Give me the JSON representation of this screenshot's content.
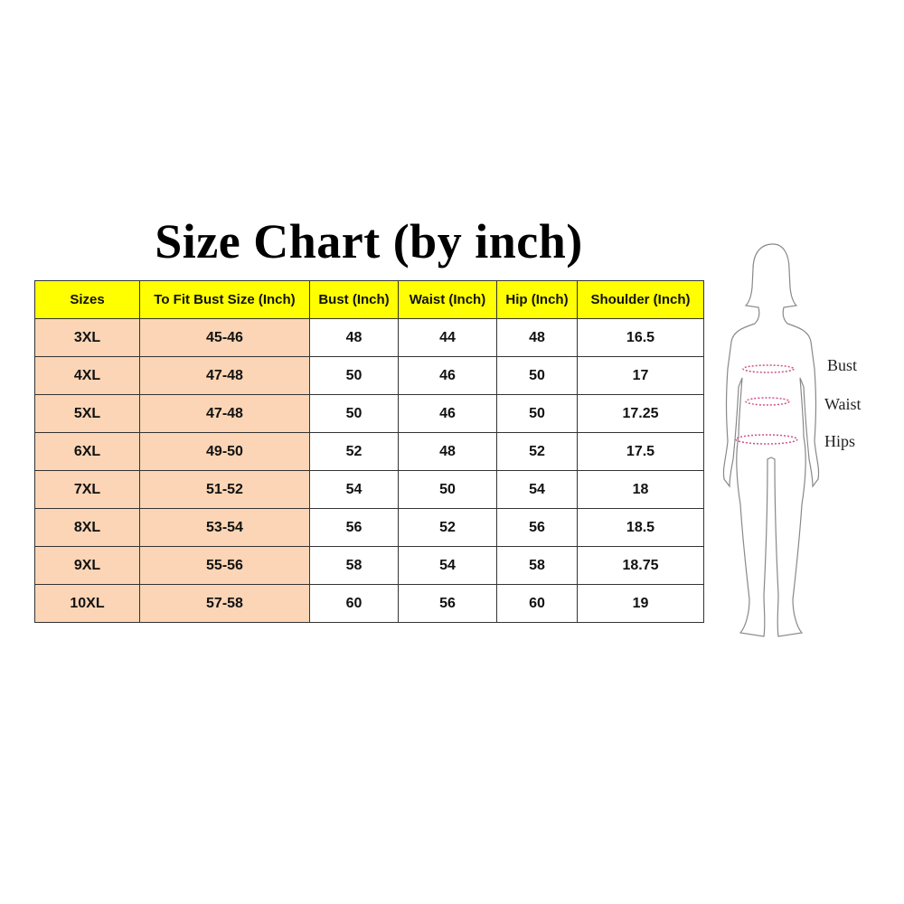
{
  "title": "Size Chart (by inch)",
  "table": {
    "headers": [
      "Sizes",
      "To Fit Bust Size (Inch)",
      "Bust (Inch)",
      "Waist (Inch)",
      "Hip (Inch)",
      "Shoulder (Inch)"
    ],
    "rows": [
      [
        "3XL",
        "45-46",
        "48",
        "44",
        "48",
        "16.5"
      ],
      [
        "4XL",
        "47-48",
        "50",
        "46",
        "50",
        "17"
      ],
      [
        "5XL",
        "47-48",
        "50",
        "46",
        "50",
        "17.25"
      ],
      [
        "6XL",
        "49-50",
        "52",
        "48",
        "52",
        "17.5"
      ],
      [
        "7XL",
        "51-52",
        "54",
        "50",
        "54",
        "18"
      ],
      [
        "8XL",
        "53-54",
        "56",
        "52",
        "56",
        "18.5"
      ],
      [
        "9XL",
        "55-56",
        "58",
        "54",
        "58",
        "18.75"
      ],
      [
        "10XL",
        "57-58",
        "60",
        "56",
        "60",
        "19"
      ]
    ],
    "header_color": "#ffff00",
    "size_column_color": "#fbd5b5"
  },
  "figure": {
    "labels": {
      "bust": "Bust",
      "waist": "Waist",
      "hips": "Hips"
    },
    "measure_line_color": "#d0508a"
  }
}
